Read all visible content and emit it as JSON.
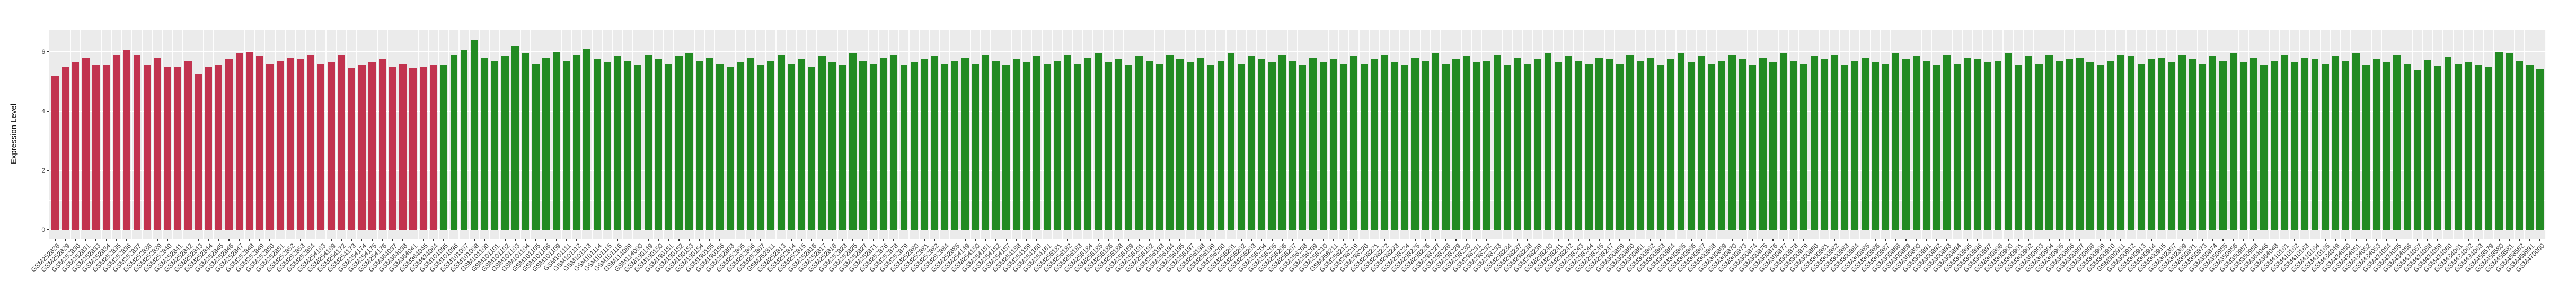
{
  "style": {
    "panel_bg": "#EBEBEB",
    "grid_color": "#FFFFFF",
    "axis_text_color": "#4D4D4D",
    "tick_color": "#333333",
    "x_label_color": "#404040",
    "red": "#C2334F",
    "green": "#228B22"
  },
  "chart_data": {
    "type": "bar",
    "title": "",
    "xlabel": "",
    "ylabel": "Expression Level",
    "ylim": [
      -0.3,
      6.75
    ],
    "ytick_values": [
      0,
      2,
      4,
      6
    ],
    "ytick_labels": [
      "0",
      "2",
      "4",
      "6"
    ],
    "ytick_minor_values": [
      1,
      3,
      5
    ],
    "grid": true,
    "legend_position": "none",
    "bar_groups": [
      {
        "name": "red-group",
        "color": "#C2334F",
        "start_index": 0,
        "count": 38
      },
      {
        "name": "green-group",
        "color": "#228B22",
        "start_index": 38,
        "count": 206
      }
    ],
    "categories": [
      "GSM252828",
      "GSM252829",
      "GSM252830",
      "GSM252831",
      "GSM252833",
      "GSM252834",
      "GSM252835",
      "GSM252836",
      "GSM252837",
      "GSM252838",
      "GSM252839",
      "GSM252840",
      "GSM252841",
      "GSM252842",
      "GSM252843",
      "GSM252844",
      "GSM252845",
      "GSM252846",
      "GSM252847",
      "GSM252848",
      "GSM252849",
      "GSM252850",
      "GSM252851",
      "GSM252852",
      "GSM252853",
      "GSM252854",
      "GSM254163",
      "GSM254169",
      "GSM254172",
      "GSM254173",
      "GSM254174",
      "GSM254175",
      "GSM254176",
      "GSM364037",
      "GSM364038",
      "GSM364041",
      "GSM364045",
      "GSM434064",
      "GSM101095",
      "GSM101096",
      "GSM101097",
      "GSM101098",
      "GSM101100",
      "GSM101101",
      "GSM101102",
      "GSM101103",
      "GSM101104",
      "GSM101105",
      "GSM101106",
      "GSM101109",
      "GSM101111",
      "GSM101112",
      "GSM101113",
      "GSM101114",
      "GSM101115",
      "GSM101116",
      "GSM114089",
      "GSM114090",
      "GSM190149",
      "GSM190150",
      "GSM190151",
      "GSM190152",
      "GSM190153",
      "GSM190154",
      "GSM190155",
      "GSM190156",
      "GSM252803",
      "GSM252805",
      "GSM252806",
      "GSM252807",
      "GSM252811",
      "GSM252813",
      "GSM252814",
      "GSM252815",
      "GSM252816",
      "GSM252817",
      "GSM252818",
      "GSM252823",
      "GSM252825",
      "GSM252827",
      "GSM252871",
      "GSM252876",
      "GSM252878",
      "GSM252879",
      "GSM252880",
      "GSM252881",
      "GSM252882",
      "GSM252884",
      "GSM252885",
      "GSM254149",
      "GSM254150",
      "GSM254151",
      "GSM254152",
      "GSM254157",
      "GSM254158",
      "GSM254159",
      "GSM254160",
      "GSM254161",
      "GSM256181",
      "GSM256182",
      "GSM256183",
      "GSM256184",
      "GSM256185",
      "GSM256186",
      "GSM256188",
      "GSM256189",
      "GSM256191",
      "GSM256192",
      "GSM256193",
      "GSM256194",
      "GSM256195",
      "GSM256197",
      "GSM256198",
      "GSM256199",
      "GSM256200",
      "GSM256201",
      "GSM256202",
      "GSM256203",
      "GSM256204",
      "GSM256205",
      "GSM256206",
      "GSM256207",
      "GSM256208",
      "GSM256209",
      "GSM256210",
      "GSM256211",
      "GSM256212",
      "GSM298219",
      "GSM298220",
      "GSM298221",
      "GSM298222",
      "GSM298223",
      "GSM298224",
      "GSM298225",
      "GSM298226",
      "GSM298227",
      "GSM298228",
      "GSM298229",
      "GSM298230",
      "GSM298231",
      "GSM298232",
      "GSM298233",
      "GSM298234",
      "GSM298237",
      "GSM298238",
      "GSM298239",
      "GSM298240",
      "GSM298241",
      "GSM298242",
      "GSM298243",
      "GSM298244",
      "GSM298245",
      "GSM298247",
      "GSM300859",
      "GSM300860",
      "GSM300861",
      "GSM300862",
      "GSM300863",
      "GSM300864",
      "GSM300865",
      "GSM300866",
      "GSM300867",
      "GSM300868",
      "GSM300869",
      "GSM300870",
      "GSM300873",
      "GSM300874",
      "GSM300875",
      "GSM300876",
      "GSM300877",
      "GSM300878",
      "GSM300879",
      "GSM300880",
      "GSM300881",
      "GSM300882",
      "GSM300883",
      "GSM300884",
      "GSM300885",
      "GSM300886",
      "GSM300887",
      "GSM300888",
      "GSM300889",
      "GSM300890",
      "GSM300891",
      "GSM300892",
      "GSM300893",
      "GSM300894",
      "GSM300895",
      "GSM300896",
      "GSM300897",
      "GSM300898",
      "GSM300900",
      "GSM300901",
      "GSM300902",
      "GSM300903",
      "GSM300904",
      "GSM300905",
      "GSM300906",
      "GSM300907",
      "GSM300908",
      "GSM300909",
      "GSM300910",
      "GSM300911",
      "GSM300912",
      "GSM300913",
      "GSM300914",
      "GSM300915",
      "GSM302397",
      "GSM302399",
      "GSM350871",
      "GSM350873",
      "GSM350874",
      "GSM350955",
      "GSM350956",
      "GSM350957",
      "GSM350958",
      "GSM364046",
      "GSM364048",
      "GSM410161",
      "GSM410162",
      "GSM410163",
      "GSM410164",
      "GSM410165",
      "GSM434049",
      "GSM434050",
      "GSM434051",
      "GSM434052",
      "GSM434053",
      "GSM434054",
      "GSM434055",
      "GSM434056",
      "GSM434057",
      "GSM434058",
      "GSM434059",
      "GSM434060",
      "GSM434061",
      "GSM434062",
      "GSM434063",
      "GSM458579",
      "GSM458580",
      "GSM458581",
      "GSM458582",
      "GSM469991",
      "GSM470000"
    ],
    "values": [
      5.2,
      5.5,
      5.65,
      5.8,
      5.55,
      5.55,
      5.9,
      6.05,
      5.9,
      5.55,
      5.8,
      5.5,
      5.5,
      5.7,
      5.25,
      5.5,
      5.55,
      5.75,
      5.95,
      6.0,
      5.85,
      5.6,
      5.7,
      5.8,
      5.75,
      5.9,
      5.6,
      5.65,
      5.9,
      5.45,
      5.55,
      5.65,
      5.75,
      5.5,
      5.6,
      5.45,
      5.5,
      5.55,
      5.55,
      5.9,
      6.05,
      6.4,
      5.8,
      5.7,
      5.85,
      6.2,
      5.95,
      5.6,
      5.8,
      6.0,
      5.7,
      5.9,
      6.1,
      5.75,
      5.65,
      5.85,
      5.7,
      5.55,
      5.9,
      5.75,
      5.6,
      5.85,
      5.95,
      5.7,
      5.8,
      5.6,
      5.5,
      5.65,
      5.8,
      5.55,
      5.7,
      5.9,
      5.6,
      5.75,
      5.5,
      5.85,
      5.65,
      5.55,
      5.95,
      5.7,
      5.6,
      5.8,
      5.9,
      5.55,
      5.65,
      5.75,
      5.85,
      5.6,
      5.7,
      5.8,
      5.6,
      5.9,
      5.7,
      5.55,
      5.75,
      5.65,
      5.85,
      5.6,
      5.7,
      5.9,
      5.6,
      5.8,
      5.95,
      5.65,
      5.75,
      5.55,
      5.85,
      5.7,
      5.6,
      5.9,
      5.75,
      5.65,
      5.8,
      5.55,
      5.7,
      5.95,
      5.6,
      5.85,
      5.75,
      5.65,
      5.9,
      5.7,
      5.55,
      5.8,
      5.65,
      5.75,
      5.6,
      5.85,
      5.6,
      5.75,
      5.9,
      5.65,
      5.55,
      5.8,
      5.7,
      5.95,
      5.6,
      5.75,
      5.85,
      5.65,
      5.7,
      5.9,
      5.55,
      5.8,
      5.6,
      5.75,
      5.95,
      5.65,
      5.85,
      5.7,
      5.6,
      5.8,
      5.75,
      5.6,
      5.9,
      5.7,
      5.8,
      5.55,
      5.75,
      5.95,
      5.65,
      5.85,
      5.6,
      5.7,
      5.9,
      5.75,
      5.55,
      5.8,
      5.65,
      5.95,
      5.7,
      5.6,
      5.85,
      5.75,
      5.9,
      5.55,
      5.7,
      5.8,
      5.65,
      5.6,
      5.95,
      5.75,
      5.85,
      5.7,
      5.55,
      5.9,
      5.6,
      5.8,
      5.75,
      5.65,
      5.7,
      5.95,
      5.55,
      5.85,
      5.6,
      5.9,
      5.7,
      5.75,
      5.8,
      5.65,
      5.55,
      5.7,
      5.9,
      5.85,
      5.6,
      5.75,
      5.8,
      5.65,
      5.9,
      5.75,
      5.6,
      5.85,
      5.7,
      5.95,
      5.65,
      5.8,
      5.55,
      5.7,
      5.9,
      5.65,
      5.8,
      5.75,
      5.6,
      5.85,
      5.7,
      5.95,
      5.55,
      5.75,
      5.65,
      5.9,
      5.6,
      5.4,
      5.73,
      5.54,
      5.84,
      5.59,
      5.66,
      5.55,
      5.5,
      6.0,
      5.94,
      5.68,
      5.56,
      5.41
    ]
  }
}
